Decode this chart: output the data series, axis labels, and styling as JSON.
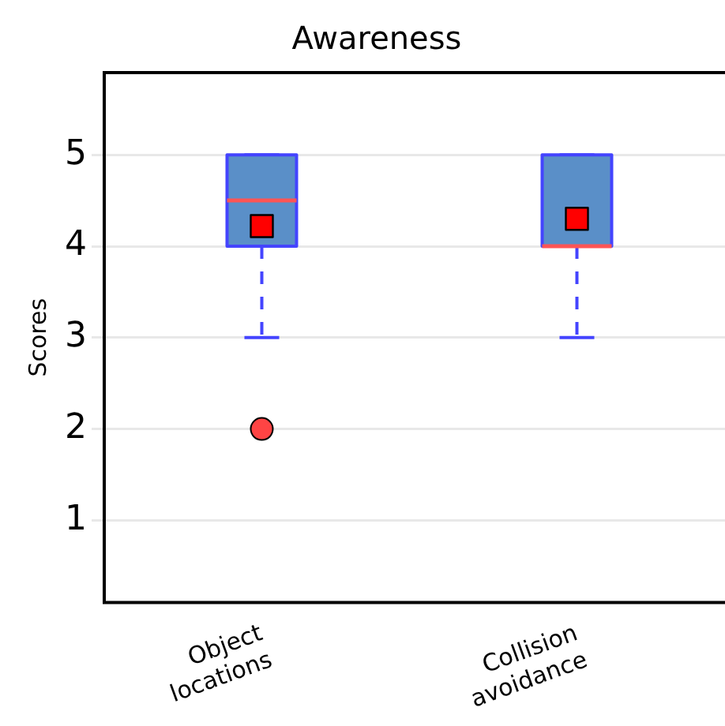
{
  "chart_data": {
    "type": "box",
    "title": "Awareness",
    "ylabel": "Scores",
    "categories": [
      "Object locations",
      "Collision avoidance"
    ],
    "boxes": [
      {
        "low": 3,
        "q1": 4,
        "median": 4.5,
        "q3": 5,
        "high": 5,
        "mean": 4.22,
        "outliers": [
          2
        ]
      },
      {
        "low": 3,
        "q1": 4,
        "median": 4,
        "q3": 5,
        "high": 5,
        "mean": 4.3
      }
    ],
    "color": "#5a8fc8",
    "ylim": [
      0.1,
      5.9
    ],
    "yticks": [
      1,
      2,
      3,
      4,
      5
    ],
    "grid": "y",
    "legend": false
  }
}
